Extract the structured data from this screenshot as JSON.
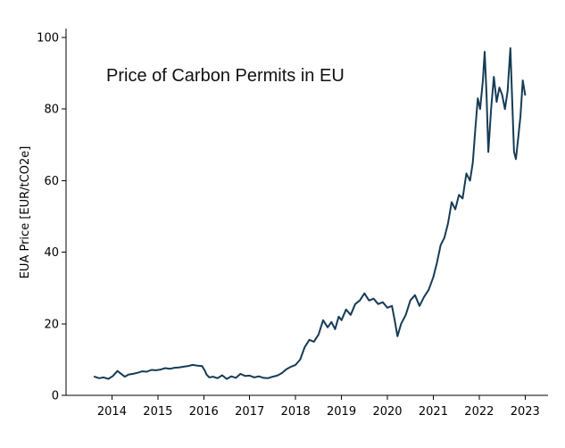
{
  "chart_data": {
    "type": "line",
    "title": "Price of Carbon Permits in EU",
    "xlabel": "",
    "ylabel": "EUA Price [EUR/tCO2e]",
    "xlim": [
      2013.0,
      2023.5
    ],
    "ylim": [
      0,
      100
    ],
    "x_ticks": [
      2014,
      2015,
      2016,
      2017,
      2018,
      2019,
      2020,
      2021,
      2022,
      2023
    ],
    "y_ticks": [
      0,
      20,
      40,
      60,
      80,
      100
    ],
    "grid": false,
    "legend": "none",
    "series": [
      {
        "name": "EUA Price",
        "color": "#163c55",
        "x": [
          2013.62,
          2013.72,
          2013.82,
          2013.92,
          2014.02,
          2014.12,
          2014.2,
          2014.28,
          2014.36,
          2014.46,
          2014.56,
          2014.66,
          2014.76,
          2014.86,
          2014.96,
          2015.06,
          2015.16,
          2015.26,
          2015.36,
          2015.46,
          2015.56,
          2015.66,
          2015.76,
          2015.86,
          2015.96,
          2016.02,
          2016.06,
          2016.12,
          2016.2,
          2016.3,
          2016.4,
          2016.5,
          2016.6,
          2016.7,
          2016.8,
          2016.9,
          2017.0,
          2017.1,
          2017.2,
          2017.3,
          2017.4,
          2017.5,
          2017.6,
          2017.7,
          2017.8,
          2017.9,
          2018.0,
          2018.1,
          2018.2,
          2018.3,
          2018.4,
          2018.5,
          2018.6,
          2018.7,
          2018.78,
          2018.86,
          2018.94,
          2019.0,
          2019.1,
          2019.2,
          2019.3,
          2019.4,
          2019.5,
          2019.6,
          2019.7,
          2019.8,
          2019.9,
          2020.0,
          2020.1,
          2020.16,
          2020.22,
          2020.3,
          2020.4,
          2020.5,
          2020.6,
          2020.7,
          2020.8,
          2020.9,
          2021.0,
          2021.08,
          2021.16,
          2021.24,
          2021.32,
          2021.4,
          2021.48,
          2021.56,
          2021.64,
          2021.72,
          2021.8,
          2021.86,
          2021.92,
          2021.97,
          2022.02,
          2022.08,
          2022.12,
          2022.16,
          2022.2,
          2022.26,
          2022.32,
          2022.38,
          2022.44,
          2022.5,
          2022.56,
          2022.62,
          2022.68,
          2022.72,
          2022.76,
          2022.8,
          2022.85,
          2022.9,
          2022.95,
          2023.0
        ],
        "y": [
          5.2,
          4.8,
          5.0,
          4.6,
          5.4,
          6.8,
          6.0,
          5.2,
          5.8,
          6.0,
          6.3,
          6.7,
          6.6,
          7.1,
          7.0,
          7.2,
          7.6,
          7.4,
          7.7,
          7.8,
          8.0,
          8.2,
          8.5,
          8.3,
          8.2,
          7.0,
          5.8,
          5.0,
          5.2,
          4.8,
          5.6,
          4.6,
          5.3,
          4.9,
          6.0,
          5.4,
          5.5,
          5.0,
          5.3,
          4.9,
          4.8,
          5.2,
          5.5,
          6.2,
          7.3,
          8.0,
          8.5,
          10.0,
          13.5,
          15.5,
          15.0,
          17.0,
          21.0,
          19.0,
          20.5,
          18.5,
          22.0,
          21.0,
          24.0,
          22.5,
          25.5,
          26.5,
          28.5,
          26.5,
          27.0,
          25.5,
          26.0,
          24.5,
          25.0,
          21.0,
          16.5,
          20.0,
          22.5,
          26.5,
          28.0,
          25.0,
          27.5,
          29.5,
          33.0,
          37.0,
          42.0,
          44.0,
          48.0,
          54.0,
          52.0,
          56.0,
          55.0,
          62.0,
          60.0,
          65.0,
          75.0,
          83.0,
          80.0,
          88.0,
          96.0,
          84.0,
          68.0,
          80.0,
          89.0,
          82.0,
          86.0,
          84.0,
          80.0,
          85.0,
          97.0,
          82.0,
          68.0,
          66.0,
          72.0,
          78.0,
          88.0,
          84.0
        ]
      }
    ]
  }
}
